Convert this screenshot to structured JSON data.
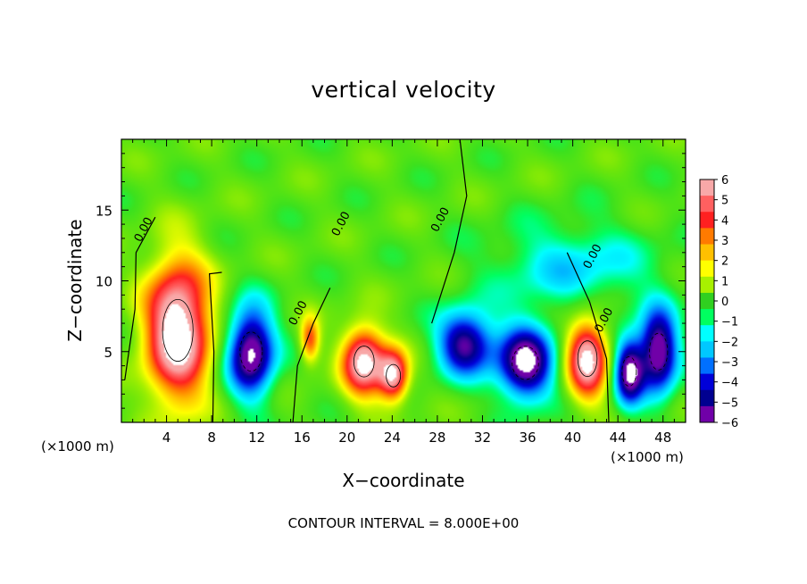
{
  "chart_data": {
    "type": "heatmap",
    "title": "vertical velocity",
    "xlabel": "X−coordinate",
    "ylabel": "Z−coordinate",
    "x_unit": "(×1000 m)",
    "xlim": [
      0,
      50
    ],
    "ylim": [
      0,
      20
    ],
    "x_ticks": [
      4,
      8,
      12,
      16,
      20,
      24,
      28,
      32,
      36,
      40,
      44,
      48
    ],
    "y_ticks": [
      5,
      10,
      15
    ],
    "colorbar": {
      "ticks": [
        6,
        5,
        4,
        3,
        2,
        1,
        0,
        -1,
        -2,
        -3,
        -4,
        -5,
        -6
      ],
      "tick_labels": [
        "6",
        "5",
        "4",
        "3",
        "2",
        "1",
        "0",
        "−1",
        "−2",
        "−3",
        "−4",
        "−5",
        "−6"
      ],
      "colors": [
        "#f8a8a8",
        "#ff6060",
        "#ff2020",
        "#ff7a00",
        "#ffc000",
        "#ffff00",
        "#a8f000",
        "#30d020",
        "#00ff60",
        "#00ffff",
        "#00c8ff",
        "#0070ff",
        "#0000d8",
        "#000090",
        "#7000a8"
      ]
    },
    "contour_label": "0.00",
    "features": [
      {
        "kind": "updraft",
        "cx": 5,
        "cz": 6.5,
        "rx": 3.0,
        "rz": 5.2,
        "peak": 8
      },
      {
        "kind": "downdraft",
        "cx": 11.5,
        "cz": 5.0,
        "rx": 2.2,
        "rz": 3.3,
        "peak": -7
      },
      {
        "kind": "updraft",
        "cx": 16.7,
        "cz": 5.8,
        "rx": 0.9,
        "rz": 1.7,
        "peak": 4
      },
      {
        "kind": "updraft",
        "cx": 21.5,
        "cz": 4.3,
        "rx": 2.0,
        "rz": 2.6,
        "peak": 7
      },
      {
        "kind": "updraft",
        "cx": 24.1,
        "cz": 3.3,
        "rx": 1.4,
        "rz": 1.9,
        "peak": 6.5
      },
      {
        "kind": "downdraft",
        "cx": 30.5,
        "cz": 5.6,
        "rx": 2.6,
        "rz": 2.4,
        "peak": -6
      },
      {
        "kind": "downdraft",
        "cx": 35.8,
        "cz": 4.2,
        "rx": 2.6,
        "rz": 2.8,
        "peak": -7
      },
      {
        "kind": "updraft",
        "cx": 41.3,
        "cz": 4.5,
        "rx": 1.9,
        "rz": 3.0,
        "peak": 7
      },
      {
        "kind": "downdraft",
        "cx": 45.0,
        "cz": 3.6,
        "rx": 1.4,
        "rz": 2.5,
        "peak": -6.5
      },
      {
        "kind": "downdraft",
        "cx": 47.6,
        "cz": 5.0,
        "rx": 1.8,
        "rz": 3.1,
        "peak": -7
      }
    ],
    "contour_interval_text": "CONTOUR INTERVAL = 8.000E+00"
  }
}
